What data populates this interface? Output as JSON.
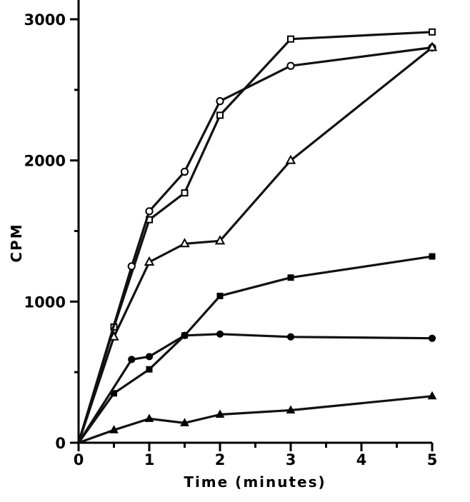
{
  "chart_data": {
    "type": "line",
    "xlabel": "Time (minutes)",
    "ylabel": "CPM",
    "xlim": [
      0,
      5
    ],
    "ylim": [
      0,
      3000
    ],
    "x_ticks": [
      "0",
      "1",
      "2",
      "3",
      "4",
      "5"
    ],
    "y_ticks": [
      "0",
      "1000",
      "2000",
      "3000"
    ],
    "x_tick_values": [
      0,
      1,
      2,
      3,
      4,
      5
    ],
    "y_tick_values": [
      0,
      1000,
      2000,
      3000
    ],
    "grid": false,
    "legend": "none",
    "series": [
      {
        "marker": "open-square",
        "points": [
          [
            0,
            0
          ],
          [
            0.5,
            820
          ],
          [
            1,
            1580
          ],
          [
            1.5,
            1770
          ],
          [
            2,
            2320
          ],
          [
            3,
            2860
          ],
          [
            5,
            2910
          ]
        ]
      },
      {
        "marker": "open-circle",
        "points": [
          [
            0,
            0
          ],
          [
            0.75,
            1250
          ],
          [
            1,
            1640
          ],
          [
            1.5,
            1920
          ],
          [
            2,
            2420
          ],
          [
            3,
            2670
          ],
          [
            5,
            2800
          ]
        ]
      },
      {
        "marker": "open-triangle",
        "points": [
          [
            0,
            0
          ],
          [
            0.5,
            750
          ],
          [
            1,
            1280
          ],
          [
            1.5,
            1410
          ],
          [
            2,
            1430
          ],
          [
            3,
            2000
          ],
          [
            5,
            2800
          ]
        ]
      },
      {
        "marker": "filled-square",
        "points": [
          [
            0,
            0
          ],
          [
            0.5,
            350
          ],
          [
            1,
            520
          ],
          [
            1.5,
            760
          ],
          [
            2,
            1040
          ],
          [
            3,
            1170
          ],
          [
            5,
            1320
          ]
        ]
      },
      {
        "marker": "filled-circle",
        "points": [
          [
            0,
            0
          ],
          [
            0.75,
            590
          ],
          [
            1,
            610
          ],
          [
            1.5,
            760
          ],
          [
            2,
            770
          ],
          [
            3,
            750
          ],
          [
            5,
            740
          ]
        ]
      },
      {
        "marker": "filled-triangle",
        "points": [
          [
            0,
            0
          ],
          [
            0.5,
            90
          ],
          [
            1,
            170
          ],
          [
            1.5,
            140
          ],
          [
            2,
            200
          ],
          [
            3,
            230
          ],
          [
            5,
            330
          ]
        ]
      }
    ]
  }
}
